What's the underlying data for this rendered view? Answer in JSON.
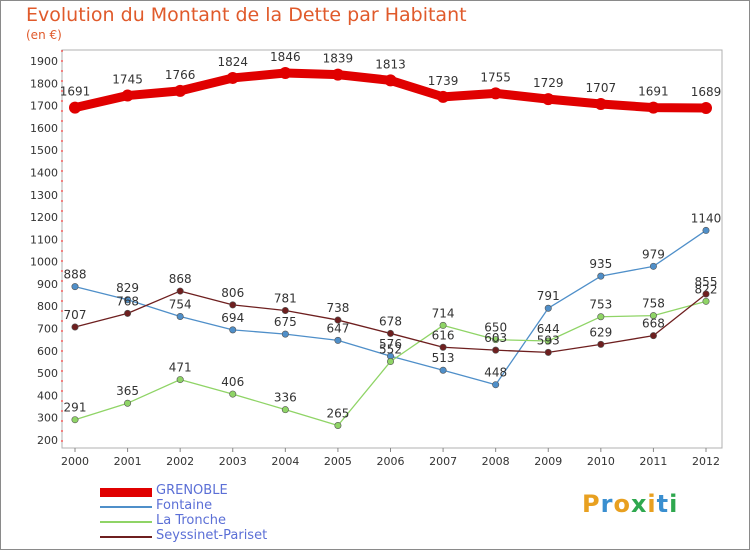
{
  "header": {
    "title": "Evolution du Montant de la Dette par Habitant",
    "subtitle": "(en €)"
  },
  "chart_data": {
    "type": "line",
    "title": "Evolution du Montant de la Dette par Habitant",
    "subtitle": "(en €)",
    "x": [
      2000,
      2001,
      2002,
      2003,
      2004,
      2005,
      2006,
      2007,
      2008,
      2009,
      2010,
      2011,
      2012
    ],
    "x_ticks": [
      "2000",
      "2001",
      "2002",
      "2003",
      "2004",
      "2005",
      "2006",
      "2007",
      "2008",
      "2009",
      "2010",
      "2011",
      "2012"
    ],
    "y_ticks": [
      "200",
      "300",
      "400",
      "500",
      "600",
      "700",
      "800",
      "900",
      "1000",
      "1100",
      "1200",
      "1300",
      "1400",
      "1500",
      "1600",
      "1700",
      "1800",
      "1900"
    ],
    "ylim": [
      200,
      1900
    ],
    "grid": false,
    "legend_position": "bottom-left",
    "series": [
      {
        "name": "GRENOBLE",
        "color": "#e00000",
        "values": [
          1691,
          1745,
          1766,
          1824,
          1846,
          1839,
          1813,
          1739,
          1755,
          1729,
          1707,
          1691,
          1689
        ],
        "labels": [
          "1691",
          "1745",
          "1766",
          "1824",
          "1846",
          "1839",
          "1813",
          "1739",
          "1755",
          "1729",
          "1707",
          "1691",
          "1689"
        ]
      },
      {
        "name": "Fontaine",
        "color": "#4f8fc9",
        "values": [
          888,
          829,
          754,
          694,
          675,
          647,
          576,
          513,
          448,
          791,
          935,
          979,
          1140
        ],
        "labels": [
          "888",
          "829",
          "754",
          "694",
          "675",
          "647",
          "576",
          "513",
          "448",
          "791",
          "935",
          "979",
          "1140"
        ]
      },
      {
        "name": "La Tronche",
        "color": "#8fd466",
        "values": [
          291,
          365,
          471,
          406,
          336,
          265,
          552,
          714,
          650,
          644,
          753,
          758,
          822
        ],
        "labels": [
          "291",
          "365",
          "471",
          "406",
          "336",
          "265",
          "552",
          "714",
          "650",
          "644",
          "753",
          "758",
          "822"
        ]
      },
      {
        "name": "Seyssinet-Pariset",
        "color": "#6e1f1f",
        "values": [
          707,
          768,
          868,
          806,
          781,
          738,
          678,
          616,
          603,
          593,
          629,
          668,
          855
        ],
        "labels": [
          "707",
          "768",
          "868",
          "806",
          "781",
          "738",
          "678",
          "616",
          "603",
          "593",
          "629",
          "668",
          "855"
        ]
      }
    ]
  },
  "logo": {
    "text": "Proxiti"
  }
}
